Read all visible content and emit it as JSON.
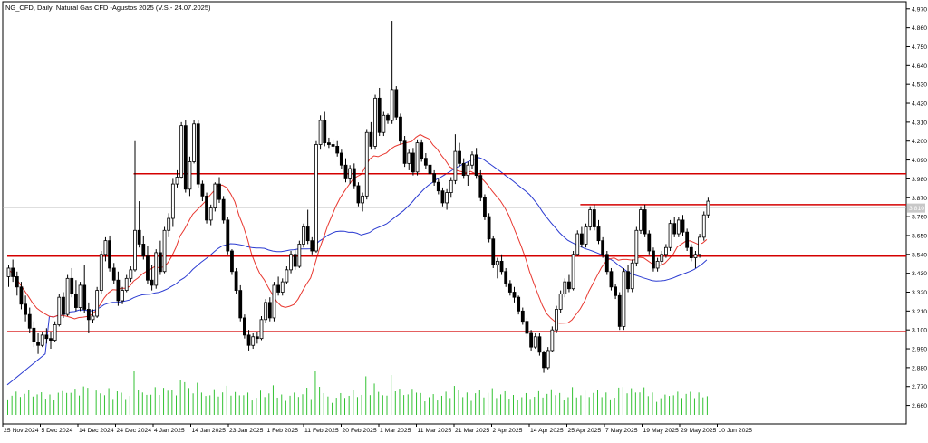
{
  "header": {
    "title": "NG_CFD, Daily:  Natural Gas CFD -Agustos 2025 (V.S.- 24.07.2025)"
  },
  "price_badge": "3.810",
  "colors": {
    "bull": "#ffffff",
    "bear": "#000000",
    "wick": "#000000",
    "ma_fast": "#e8372f",
    "ma_slow": "#2b3bd1",
    "volume": "#33c233",
    "level": "#d40000",
    "grid": "#d9d9d9",
    "axis": "#000000"
  },
  "chart_data": {
    "type": "candlestick",
    "title": "NG_CFD, Daily:  Natural Gas CFD -Agustos 2025 (V.S.- 24.07.2025)",
    "ylim": [
      2.605,
      4.99
    ],
    "y_ticks": [
      "4.970",
      "4.860",
      "4.750",
      "4.640",
      "4.530",
      "4.420",
      "4.310",
      "4.200",
      "4.090",
      "3.980",
      "3.870",
      "3.760",
      "3.650",
      "3.540",
      "3.430",
      "3.320",
      "3.210",
      "3.100",
      "2.990",
      "2.880",
      "2.770",
      "2.660"
    ],
    "x_labels": [
      "25 Nov 2024",
      "5 Dec 2024",
      "14 Dec 2024",
      "24 Dec 2024",
      "4 Jan 2025",
      "14 Jan 2025",
      "23 Jan 2025",
      "1 Feb 2025",
      "11 Feb 2025",
      "20 Feb 2025",
      "1 Mar 2025",
      "11 Mar 2025",
      "21 Mar 2025",
      "2 Apr 2025",
      "14 Apr 2025",
      "25 Apr 2025",
      "7 May 2025",
      "19 May 2025",
      "29 May 2025",
      "10 Jun 2025"
    ],
    "horizontal_levels": [
      {
        "price": 4.01,
        "from_index": 30
      },
      {
        "price": 3.83,
        "from_index": 136
      },
      {
        "price": 3.53,
        "from_index": 0
      },
      {
        "price": 3.09,
        "from_index": 0
      }
    ],
    "current_price": 3.81,
    "candles": [
      [
        3.41,
        3.48,
        3.35,
        3.46
      ],
      [
        3.46,
        3.51,
        3.38,
        3.41
      ],
      [
        3.41,
        3.44,
        3.3,
        3.35
      ],
      [
        3.35,
        3.38,
        3.22,
        3.25
      ],
      [
        3.25,
        3.3,
        3.15,
        3.19
      ],
      [
        3.19,
        3.23,
        3.08,
        3.11
      ],
      [
        3.11,
        3.15,
        3.0,
        3.03
      ],
      [
        3.03,
        3.08,
        2.96,
        3.01
      ],
      [
        3.01,
        3.09,
        3.0,
        3.07
      ],
      [
        3.07,
        3.11,
        3.02,
        3.05
      ],
      [
        3.05,
        3.09,
        2.99,
        3.04
      ],
      [
        3.04,
        3.15,
        3.03,
        3.13
      ],
      [
        3.13,
        3.31,
        3.12,
        3.29
      ],
      [
        3.29,
        3.32,
        3.17,
        3.19
      ],
      [
        3.19,
        3.42,
        3.18,
        3.4
      ],
      [
        3.4,
        3.46,
        3.29,
        3.31
      ],
      [
        3.31,
        3.39,
        3.21,
        3.23
      ],
      [
        3.23,
        3.38,
        3.21,
        3.36
      ],
      [
        3.36,
        3.48,
        3.2,
        3.22
      ],
      [
        3.22,
        3.26,
        3.08,
        3.16
      ],
      [
        3.16,
        3.22,
        3.14,
        3.18
      ],
      [
        3.18,
        3.35,
        3.17,
        3.33
      ],
      [
        3.33,
        3.56,
        3.31,
        3.54
      ],
      [
        3.54,
        3.64,
        3.5,
        3.62
      ],
      [
        3.62,
        3.65,
        3.44,
        3.46
      ],
      [
        3.46,
        3.49,
        3.37,
        3.39
      ],
      [
        3.39,
        3.44,
        3.24,
        3.27
      ],
      [
        3.27,
        3.35,
        3.25,
        3.33
      ],
      [
        3.33,
        3.42,
        3.32,
        3.4
      ],
      [
        3.4,
        3.47,
        3.38,
        3.45
      ],
      [
        3.45,
        4.2,
        3.44,
        3.68
      ],
      [
        3.68,
        3.85,
        3.58,
        3.6
      ],
      [
        3.6,
        3.65,
        3.51,
        3.53
      ],
      [
        3.53,
        3.59,
        3.37,
        3.39
      ],
      [
        3.39,
        3.48,
        3.33,
        3.36
      ],
      [
        3.36,
        3.57,
        3.34,
        3.55
      ],
      [
        3.55,
        3.62,
        3.42,
        3.44
      ],
      [
        3.44,
        3.7,
        3.43,
        3.68
      ],
      [
        3.68,
        3.78,
        3.64,
        3.75
      ],
      [
        3.75,
        3.98,
        3.7,
        3.95
      ],
      [
        3.95,
        4.03,
        3.93,
        3.99
      ],
      [
        3.99,
        4.31,
        3.98,
        4.29
      ],
      [
        4.29,
        4.32,
        3.9,
        3.92
      ],
      [
        3.92,
        4.11,
        3.88,
        4.08
      ],
      [
        4.08,
        4.32,
        4.07,
        4.3
      ],
      [
        4.3,
        4.32,
        3.93,
        3.95
      ],
      [
        3.95,
        3.97,
        3.85,
        3.88
      ],
      [
        3.88,
        3.9,
        3.72,
        3.74
      ],
      [
        3.74,
        3.83,
        3.71,
        3.81
      ],
      [
        3.81,
        3.96,
        3.79,
        3.95
      ],
      [
        3.95,
        3.99,
        3.84,
        3.86
      ],
      [
        3.86,
        3.88,
        3.72,
        3.74
      ],
      [
        3.74,
        3.76,
        3.54,
        3.56
      ],
      [
        3.56,
        3.57,
        3.42,
        3.44
      ],
      [
        3.44,
        3.46,
        3.31,
        3.33
      ],
      [
        3.33,
        3.36,
        3.15,
        3.17
      ],
      [
        3.17,
        3.19,
        3.05,
        3.07
      ],
      [
        3.07,
        3.1,
        2.98,
        3.01
      ],
      [
        3.01,
        3.08,
        2.99,
        3.06
      ],
      [
        3.06,
        3.09,
        3.02,
        3.05
      ],
      [
        3.05,
        3.18,
        3.04,
        3.16
      ],
      [
        3.16,
        3.28,
        3.14,
        3.26
      ],
      [
        3.26,
        3.29,
        3.15,
        3.17
      ],
      [
        3.17,
        3.38,
        3.15,
        3.36
      ],
      [
        3.36,
        3.41,
        3.3,
        3.32
      ],
      [
        3.32,
        3.4,
        3.3,
        3.38
      ],
      [
        3.38,
        3.47,
        3.37,
        3.45
      ],
      [
        3.45,
        3.56,
        3.43,
        3.54
      ],
      [
        3.54,
        3.57,
        3.45,
        3.47
      ],
      [
        3.47,
        3.62,
        3.46,
        3.6
      ],
      [
        3.6,
        3.72,
        3.58,
        3.7
      ],
      [
        3.7,
        3.8,
        3.6,
        3.62
      ],
      [
        3.62,
        3.64,
        3.54,
        3.56
      ],
      [
        3.56,
        4.2,
        3.55,
        4.18
      ],
      [
        4.18,
        4.35,
        4.15,
        4.32
      ],
      [
        4.32,
        4.37,
        4.17,
        4.19
      ],
      [
        4.19,
        4.22,
        4.16,
        4.18
      ],
      [
        4.18,
        4.21,
        4.15,
        4.17
      ],
      [
        4.17,
        4.2,
        4.11,
        4.13
      ],
      [
        4.13,
        4.15,
        4.04,
        4.06
      ],
      [
        4.06,
        4.1,
        3.96,
        3.98
      ],
      [
        3.98,
        4.06,
        3.95,
        4.04
      ],
      [
        4.04,
        4.07,
        3.92,
        3.94
      ],
      [
        3.94,
        3.96,
        3.82,
        3.84
      ],
      [
        3.84,
        3.9,
        3.79,
        3.88
      ],
      [
        3.88,
        4.27,
        3.86,
        4.25
      ],
      [
        4.25,
        4.31,
        4.15,
        4.17
      ],
      [
        4.17,
        4.47,
        4.15,
        4.45
      ],
      [
        4.45,
        4.51,
        4.23,
        4.25
      ],
      [
        4.25,
        4.37,
        4.23,
        4.35
      ],
      [
        4.35,
        4.36,
        4.3,
        4.32
      ],
      [
        4.32,
        4.9,
        4.3,
        4.5
      ],
      [
        4.5,
        4.52,
        4.32,
        4.34
      ],
      [
        4.34,
        4.36,
        4.18,
        4.2
      ],
      [
        4.2,
        4.23,
        4.05,
        4.07
      ],
      [
        4.07,
        4.15,
        4.03,
        4.13
      ],
      [
        4.13,
        4.16,
        4.0,
        4.02
      ],
      [
        4.02,
        4.21,
        4.0,
        4.19
      ],
      [
        4.19,
        4.21,
        4.08,
        4.1
      ],
      [
        4.1,
        4.13,
        4.04,
        4.06
      ],
      [
        4.06,
        4.09,
        3.99,
        4.01
      ],
      [
        4.01,
        4.03,
        3.94,
        3.96
      ],
      [
        3.96,
        3.98,
        3.89,
        3.91
      ],
      [
        3.91,
        3.93,
        3.82,
        3.84
      ],
      [
        3.84,
        3.92,
        3.8,
        3.9
      ],
      [
        3.9,
        3.99,
        3.87,
        3.97
      ],
      [
        3.97,
        4.24,
        3.95,
        4.14
      ],
      [
        4.14,
        4.19,
        4.05,
        4.07
      ],
      [
        4.07,
        4.1,
        3.98,
        4.0
      ],
      [
        4.0,
        4.08,
        3.94,
        4.06
      ],
      [
        4.06,
        4.14,
        4.04,
        4.12
      ],
      [
        4.12,
        4.16,
        3.98,
        4.0
      ],
      [
        4.0,
        4.03,
        3.85,
        3.87
      ],
      [
        3.87,
        3.89,
        3.74,
        3.76
      ],
      [
        3.76,
        3.78,
        3.61,
        3.63
      ],
      [
        3.63,
        3.65,
        3.46,
        3.48
      ],
      [
        3.48,
        3.52,
        3.4,
        3.5
      ],
      [
        3.5,
        3.54,
        3.42,
        3.44
      ],
      [
        3.44,
        3.46,
        3.35,
        3.37
      ],
      [
        3.37,
        3.39,
        3.3,
        3.32
      ],
      [
        3.32,
        3.35,
        3.26,
        3.29
      ],
      [
        3.29,
        3.3,
        3.19,
        3.21
      ],
      [
        3.21,
        3.23,
        3.13,
        3.15
      ],
      [
        3.15,
        3.17,
        3.06,
        3.08
      ],
      [
        3.08,
        3.1,
        2.98,
        3.0
      ],
      [
        3.0,
        3.08,
        2.99,
        3.06
      ],
      [
        3.06,
        3.08,
        2.95,
        2.97
      ],
      [
        2.97,
        2.98,
        2.85,
        2.88
      ],
      [
        2.88,
        3.0,
        2.87,
        2.98
      ],
      [
        2.98,
        3.12,
        2.97,
        3.1
      ],
      [
        3.1,
        3.24,
        3.08,
        3.22
      ],
      [
        3.22,
        3.33,
        3.2,
        3.31
      ],
      [
        3.31,
        3.4,
        3.29,
        3.38
      ],
      [
        3.38,
        3.42,
        3.32,
        3.34
      ],
      [
        3.34,
        3.56,
        3.33,
        3.54
      ],
      [
        3.54,
        3.68,
        3.53,
        3.66
      ],
      [
        3.66,
        3.7,
        3.58,
        3.6
      ],
      [
        3.6,
        3.72,
        3.58,
        3.7
      ],
      [
        3.7,
        3.82,
        3.68,
        3.8
      ],
      [
        3.8,
        3.83,
        3.68,
        3.7
      ],
      [
        3.7,
        3.74,
        3.6,
        3.62
      ],
      [
        3.62,
        3.64,
        3.52,
        3.54
      ],
      [
        3.54,
        3.56,
        3.42,
        3.44
      ],
      [
        3.44,
        3.46,
        3.33,
        3.35
      ],
      [
        3.35,
        3.37,
        3.28,
        3.3
      ],
      [
        3.3,
        3.32,
        3.1,
        3.12
      ],
      [
        3.12,
        3.46,
        3.1,
        3.44
      ],
      [
        3.44,
        3.48,
        3.32,
        3.34
      ],
      [
        3.34,
        3.51,
        3.32,
        3.49
      ],
      [
        3.49,
        3.7,
        3.47,
        3.68
      ],
      [
        3.68,
        3.82,
        3.66,
        3.8
      ],
      [
        3.8,
        3.83,
        3.64,
        3.66
      ],
      [
        3.66,
        3.68,
        3.54,
        3.56
      ],
      [
        3.56,
        3.58,
        3.44,
        3.46
      ],
      [
        3.46,
        3.52,
        3.44,
        3.5
      ],
      [
        3.5,
        3.56,
        3.48,
        3.54
      ],
      [
        3.54,
        3.6,
        3.52,
        3.58
      ],
      [
        3.58,
        3.74,
        3.56,
        3.72
      ],
      [
        3.72,
        3.76,
        3.64,
        3.66
      ],
      [
        3.66,
        3.76,
        3.64,
        3.74
      ],
      [
        3.74,
        3.77,
        3.65,
        3.67
      ],
      [
        3.67,
        3.69,
        3.56,
        3.58
      ],
      [
        3.58,
        3.6,
        3.5,
        3.52
      ],
      [
        3.52,
        3.56,
        3.46,
        3.54
      ],
      [
        3.54,
        3.66,
        3.52,
        3.64
      ],
      [
        3.64,
        3.79,
        3.62,
        3.77
      ],
      [
        3.77,
        3.87,
        3.75,
        3.85
      ]
    ]
  }
}
